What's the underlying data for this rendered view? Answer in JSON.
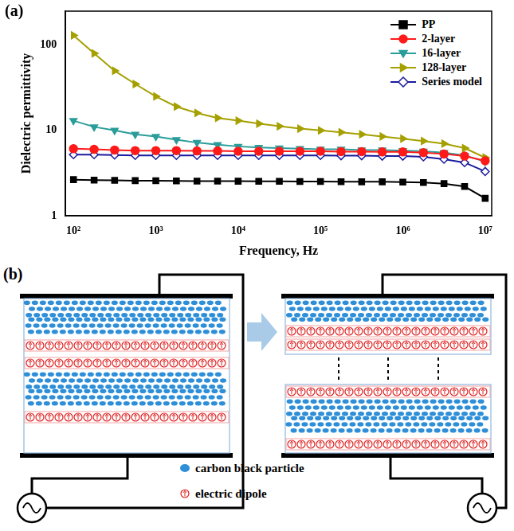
{
  "chart_data": {
    "type": "line",
    "panel_label": "(a)",
    "x_label": "Frequency, Hz",
    "y_label": "Dielectric permittivity",
    "log": true,
    "grid": false,
    "legend": "top-right",
    "xlim": [
      80,
      12000000
    ],
    "ylim": [
      1,
      250
    ],
    "xticks": [
      {
        "value": 100,
        "label": "10²"
      },
      {
        "value": 1000,
        "label": "10³"
      },
      {
        "value": 10000,
        "label": "10⁴"
      },
      {
        "value": 100000,
        "label": "10⁵"
      },
      {
        "value": 1000000,
        "label": "10⁶"
      },
      {
        "value": 10000000,
        "label": "10⁷"
      }
    ],
    "yticks": [
      1,
      10,
      100
    ],
    "x": [
      100,
      178,
      316,
      562,
      1000,
      1778,
      3162,
      5623,
      10000,
      17783,
      31623,
      56234,
      100000,
      177828,
      316228,
      562341,
      1000000,
      1778279,
      3162278,
      5623413,
      10000000
    ],
    "series": [
      {
        "name": "PP",
        "color": "#000000",
        "marker": "square",
        "line_style": "solid",
        "values": [
          2.65,
          2.62,
          2.6,
          2.58,
          2.57,
          2.56,
          2.55,
          2.55,
          2.54,
          2.53,
          2.53,
          2.52,
          2.52,
          2.51,
          2.5,
          2.5,
          2.48,
          2.45,
          2.38,
          2.2,
          1.6
        ]
      },
      {
        "name": "2-layer",
        "color": "#ff1a1a",
        "marker": "circle",
        "line_style": "solid",
        "values": [
          6.1,
          6.0,
          5.9,
          5.8,
          5.8,
          5.8,
          5.75,
          5.75,
          5.7,
          5.7,
          5.7,
          5.7,
          5.7,
          5.65,
          5.65,
          5.6,
          5.6,
          5.5,
          5.3,
          5.0,
          4.4
        ]
      },
      {
        "name": "16-layer",
        "color": "#2a9d9a",
        "marker": "triangle-down",
        "line_style": "solid",
        "values": [
          13,
          11,
          10,
          9,
          8.5,
          7.8,
          7.2,
          6.8,
          6.5,
          6.3,
          6.2,
          6.1,
          6.0,
          6.0,
          5.9,
          5.9,
          5.8,
          5.7,
          5.5,
          5.1,
          4.3
        ]
      },
      {
        "name": "128-layer",
        "color": "#a5a000",
        "marker": "triangle-right",
        "line_style": "solid",
        "values": [
          130,
          80,
          50,
          35,
          25,
          19,
          16,
          14,
          13,
          12,
          11.2,
          10.5,
          10,
          9.5,
          9,
          8.5,
          8,
          7.5,
          7,
          6.2,
          4.8
        ]
      },
      {
        "name": "Series model",
        "color": "#1a1a9c",
        "marker": "diamond-open",
        "line_style": "solid",
        "values": [
          5.2,
          5.2,
          5.15,
          5.1,
          5.1,
          5.1,
          5.1,
          5.1,
          5.1,
          5.1,
          5.1,
          5.1,
          5.1,
          5.05,
          5.05,
          5.0,
          5.0,
          4.9,
          4.6,
          4.2,
          3.3
        ]
      }
    ]
  },
  "diagram": {
    "panel_label": "(b)",
    "legend": [
      {
        "label": "carbon black particle"
      },
      {
        "label": "electric dipole"
      }
    ]
  }
}
